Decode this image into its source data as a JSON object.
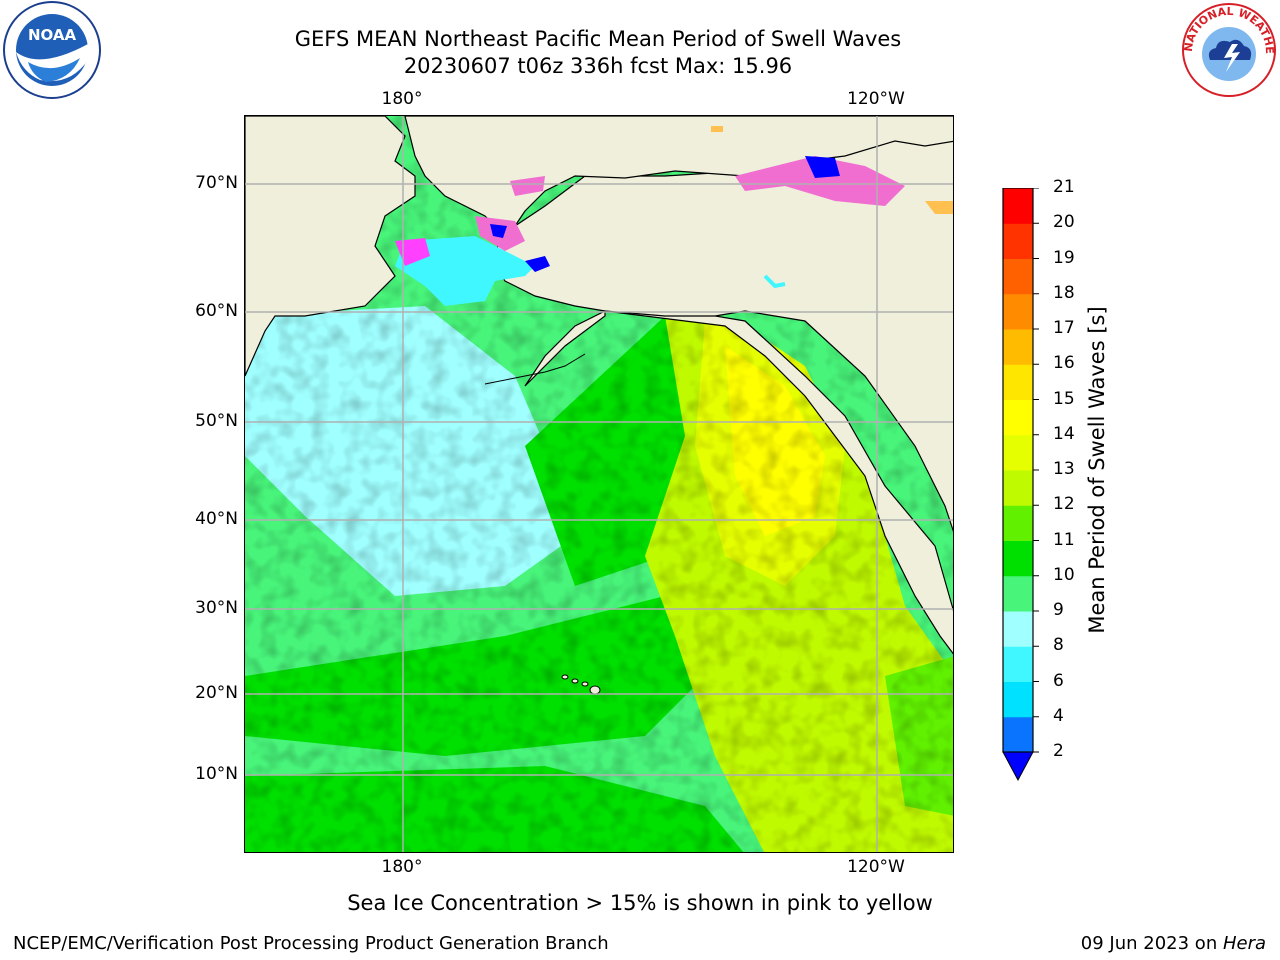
{
  "header": {
    "title_line1": "GEFS MEAN Northeast Pacific Mean Period of Swell Waves",
    "title_line2": "20230607 t06z 336h fcst   Max: 15.96"
  },
  "map": {
    "lat_labels": [
      "70°N",
      "60°N",
      "50°N",
      "40°N",
      "30°N",
      "20°N",
      "10°N"
    ],
    "lon_labels_top": [
      "180°",
      "120°W"
    ],
    "lon_labels_bottom": [
      "180°",
      "120°W"
    ],
    "colors": {
      "land": "#efefdc",
      "grid": "#b0b0b0",
      "ice_pink": "#f06ed0",
      "ice_magenta": "#ff40ff",
      "ice_yellow": "#ffc050"
    }
  },
  "colorbar": {
    "label": "Mean Period of Swell Waves [s]",
    "ticks": [
      "2",
      "4",
      "6",
      "8",
      "9",
      "10",
      "11",
      "12",
      "13",
      "14",
      "15",
      "16",
      "17",
      "18",
      "19",
      "20",
      "21"
    ],
    "colors": [
      "#0a74ff",
      "#00e0ff",
      "#40f6ff",
      "#a0ffff",
      "#48f47a",
      "#00e000",
      "#60f000",
      "#c0fa00",
      "#e6ff00",
      "#ffff00",
      "#ffe600",
      "#ffbb00",
      "#ff8c00",
      "#ff6000",
      "#ff3300",
      "#ff0000"
    ],
    "extend_color": "#0000ff"
  },
  "footer": {
    "note": "Sea Ice Concentration > 15% is shown in pink to yellow",
    "left": "NCEP/EMC/Verification Post Processing Product Generation Branch",
    "right_date": "09 Jun 2023 on ",
    "right_host": "Hera"
  },
  "logos": {
    "left": "NOAA",
    "right_text": "NATIONAL WEATHER SERVICE"
  }
}
